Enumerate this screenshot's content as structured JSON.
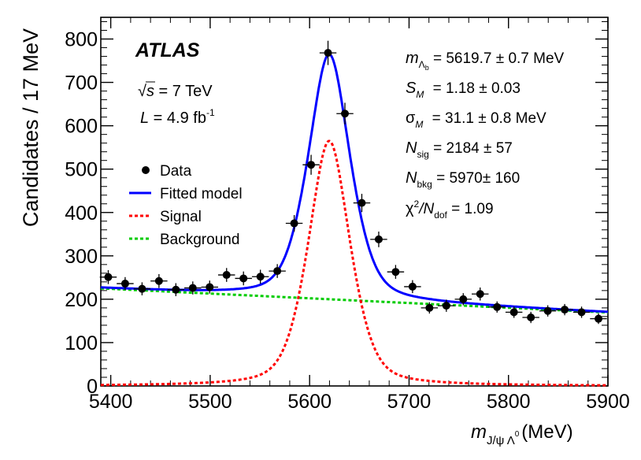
{
  "chart_data": {
    "type": "scatter",
    "title": "",
    "xlabel": "m",
    "xlabel_sub": "J/ψ Λ",
    "xlabel_sup": "0",
    "xlabel_unit": "(MeV)",
    "ylabel": "Candidates / 17 MeV",
    "xlim": [
      5390,
      5900
    ],
    "ylim": [
      0,
      850
    ],
    "x_ticks": [
      5400,
      5500,
      5600,
      5700,
      5800,
      5900
    ],
    "y_ticks": [
      0,
      100,
      200,
      300,
      400,
      500,
      600,
      700,
      800
    ],
    "x_tick_labels": [
      "5400",
      "5500",
      "5600",
      "5700",
      "5800",
      "5900"
    ],
    "y_tick_labels": [
      "0",
      "100",
      "200",
      "300",
      "400",
      "500",
      "600",
      "700",
      "800"
    ],
    "bin_width": 17,
    "series": [
      {
        "name": "Data",
        "kind": "points",
        "color": "#000000",
        "x": [
          5397.5,
          5414.5,
          5431.5,
          5448.5,
          5465.5,
          5482.5,
          5499.5,
          5516.5,
          5533.5,
          5550.5,
          5567.5,
          5584.5,
          5601.5,
          5618.5,
          5635.5,
          5652.5,
          5669.5,
          5686.5,
          5703.5,
          5720.5,
          5737.5,
          5754.5,
          5771.5,
          5788.5,
          5805.5,
          5822.5,
          5839.5,
          5856.5,
          5873.5,
          5890.5
        ],
        "y": [
          251,
          236,
          224,
          242,
          222,
          226,
          228,
          256,
          248,
          252,
          265,
          375,
          510,
          768,
          628,
          422,
          338,
          263,
          229,
          180,
          185,
          200,
          212,
          182,
          170,
          158,
          173,
          176,
          170,
          155
        ],
        "yerr": [
          16,
          15,
          15,
          16,
          15,
          15,
          15,
          16,
          16,
          16,
          16,
          19,
          23,
          28,
          25,
          21,
          18,
          16,
          15,
          13,
          14,
          14,
          15,
          13,
          13,
          13,
          13,
          13,
          13,
          12
        ]
      },
      {
        "name": "Fitted model",
        "kind": "line",
        "color": "#0000ff"
      },
      {
        "name": "Signal",
        "kind": "dashed",
        "color": "#ff0000"
      },
      {
        "name": "Background",
        "kind": "dashed",
        "color": "#00cc00"
      }
    ],
    "model": {
      "mass": 5619.7,
      "width_sigma": 31.1,
      "signal_peak": 565,
      "background_at_5390": 225,
      "background_slope_per_mev": -0.109
    },
    "legend": [
      "Data",
      "Fitted model",
      "Signal",
      "Background"
    ],
    "legend_position": "top-left"
  },
  "annotations": {
    "experiment": "ATLAS",
    "sqrt": "√",
    "energy_var": "s",
    "energy_value": " = 7 TeV",
    "lumi_var": "L",
    "lumi_value": " = 4.9 fb",
    "lumi_exp": "-1"
  },
  "fit_results": {
    "mass_label": "m",
    "mass_sub": "Λ",
    "mass_subsub": "b",
    "mass_value": " = 5619.7 ± 0.7 MeV",
    "scale_label": "S",
    "scale_sub": "M",
    "scale_value": " = 1.18 ± 0.03",
    "sigma_label": "σ",
    "sigma_sub": "M",
    "sigma_value": " = 31.1 ± 0.8 MeV",
    "nsig_label": "N",
    "nsig_sub": "sig",
    "nsig_value": " = 2184 ± 57",
    "nbkg_label": "N",
    "nbkg_sub": "bkg",
    "nbkg_value": " = 5970± 160",
    "chi_label": "χ",
    "chi_exp": "2",
    "chi_mid": "/N",
    "chi_sub": "dof",
    "chi_value": " = 1.09"
  }
}
